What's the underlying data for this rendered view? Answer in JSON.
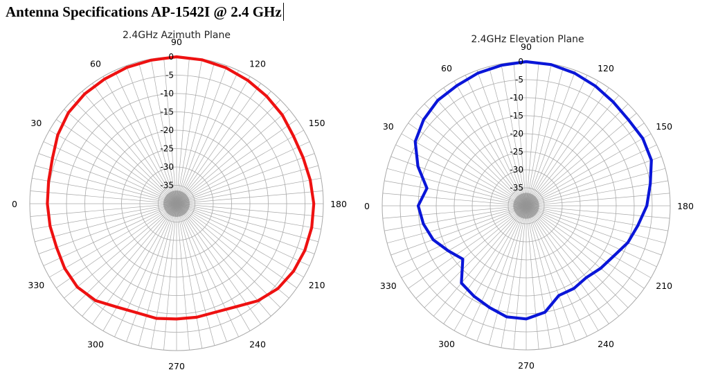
{
  "header": {
    "title": "Antenna Specifications AP-1542I @ 2.4 GHz"
  },
  "chart_data": [
    {
      "type": "polar-line",
      "title": "2.4GHz Azimuth Plane",
      "angle_ticks": [
        "0",
        "30",
        "60",
        "90",
        "120",
        "150",
        "180",
        "210",
        "240",
        "270",
        "300",
        "330"
      ],
      "radial_ticks": [
        "0",
        "-5",
        "-10",
        "-15",
        "-20",
        "-25",
        "-30",
        "-35"
      ],
      "rlim": [
        -40,
        0
      ],
      "grid": true,
      "series": [
        {
          "color": "#ee1111",
          "points": [
            [
              0,
              -4.8
            ],
            [
              10,
              -4.6
            ],
            [
              20,
              -4.0
            ],
            [
              30,
              -2.6
            ],
            [
              40,
              -1.5
            ],
            [
              50,
              -1.0
            ],
            [
              60,
              -0.8
            ],
            [
              70,
              -0.5
            ],
            [
              80,
              -0.3
            ],
            [
              90,
              0.0
            ],
            [
              100,
              -0.2
            ],
            [
              110,
              -0.6
            ],
            [
              120,
              -1.2
            ],
            [
              130,
              -1.8
            ],
            [
              140,
              -2.4
            ],
            [
              150,
              -3.2
            ],
            [
              160,
              -3.3
            ],
            [
              170,
              -3.0
            ],
            [
              180,
              -2.6
            ],
            [
              190,
              -2.6
            ],
            [
              200,
              -2.8
            ],
            [
              210,
              -3.2
            ],
            [
              220,
              -4.0
            ],
            [
              230,
              -5.5
            ],
            [
              240,
              -7.6
            ],
            [
              250,
              -8.6
            ],
            [
              260,
              -8.6
            ],
            [
              270,
              -8.6
            ],
            [
              280,
              -8.3
            ],
            [
              290,
              -8.4
            ],
            [
              300,
              -7.5
            ],
            [
              310,
              -5.6
            ],
            [
              320,
              -4.7
            ],
            [
              330,
              -4.8
            ],
            [
              340,
              -5.2
            ],
            [
              350,
              -5.0
            ],
            [
              360,
              -4.8
            ]
          ]
        }
      ]
    },
    {
      "type": "polar-line",
      "title": "2.4GHz Elevation Plane",
      "angle_ticks": [
        "0",
        "30",
        "60",
        "90",
        "120",
        "150",
        "180",
        "210",
        "240",
        "270",
        "300",
        "330"
      ],
      "radial_ticks": [
        "0",
        "-5",
        "-10",
        "-15",
        "-20",
        "-25",
        "-30",
        "-35"
      ],
      "rlim": [
        -40,
        0
      ],
      "grid": true,
      "series": [
        {
          "color": "#0a16d8",
          "points": [
            [
              0,
              -10.0
            ],
            [
              10,
              -12.0
            ],
            [
              20,
              -8.0
            ],
            [
              30,
              -4.4
            ],
            [
              40,
              -2.8
            ],
            [
              50,
              -1.8
            ],
            [
              60,
              -1.5
            ],
            [
              70,
              -0.8
            ],
            [
              80,
              -0.4
            ],
            [
              90,
              0.0
            ],
            [
              100,
              -0.2
            ],
            [
              110,
              -0.8
            ],
            [
              120,
              -1.6
            ],
            [
              130,
              -2.4
            ],
            [
              140,
              -2.9
            ],
            [
              150,
              -2.6
            ],
            [
              160,
              -3.0
            ],
            [
              170,
              -5.0
            ],
            [
              180,
              -6.5
            ],
            [
              190,
              -8.5
            ],
            [
              200,
              -10.0
            ],
            [
              210,
              -12.0
            ],
            [
              220,
              -13.0
            ],
            [
              230,
              -14.0
            ],
            [
              240,
              -13.5
            ],
            [
              250,
              -13.5
            ],
            [
              260,
              -10.0
            ],
            [
              270,
              -8.6
            ],
            [
              280,
              -8.7
            ],
            [
              290,
              -10.0
            ],
            [
              300,
              -11.0
            ],
            [
              310,
              -12.0
            ],
            [
              320,
              -17.0
            ],
            [
              330,
              -15.0
            ],
            [
              340,
              -12.5
            ],
            [
              350,
              -11.0
            ],
            [
              360,
              -10.0
            ]
          ]
        }
      ]
    }
  ]
}
